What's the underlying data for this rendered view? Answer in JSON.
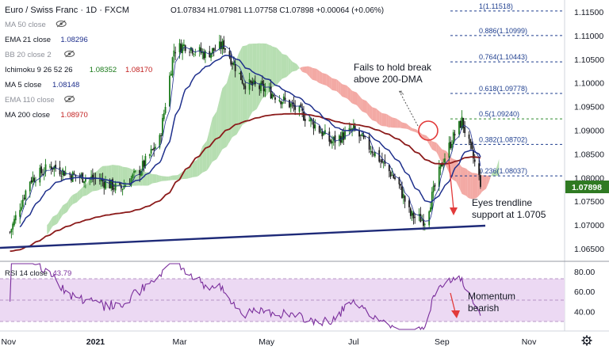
{
  "header": {
    "symbol": "Euro / Swiss Franc · 1D · FXCM",
    "ohlc": "O1.07834 H1.07981 L1.07758 C1.07898 +0.00064 (+0.06%)"
  },
  "legend": [
    {
      "label": "MA 50 close",
      "values": [],
      "hidden": true,
      "colors": []
    },
    {
      "label": "EMA 21 close",
      "values": [
        "1.08296"
      ],
      "hidden": false,
      "colors": [
        "#1e2f8c"
      ]
    },
    {
      "label": "BB 20 close 2",
      "values": [],
      "hidden": true,
      "colors": []
    },
    {
      "label": "Ichimoku 9 26 52 26",
      "values": [
        "1.08352",
        "1.08170"
      ],
      "hidden": false,
      "colors": [
        "#1a7a1a",
        "#c21f1f"
      ]
    },
    {
      "label": "MA 5 close",
      "values": [
        "1.08148"
      ],
      "hidden": false,
      "colors": [
        "#1e2f8c"
      ]
    },
    {
      "label": "EMA 110 close",
      "values": [],
      "hidden": true,
      "colors": []
    },
    {
      "label": "MA 200 close",
      "values": [
        "1.08970"
      ],
      "hidden": false,
      "colors": [
        "#c21f1f"
      ]
    }
  ],
  "fib_levels": [
    {
      "label": "1(1.11518)",
      "value": 1.11518,
      "color": "#1f3f8f"
    },
    {
      "label": "0.886(1.10999)",
      "value": 1.10999,
      "color": "#1f3f8f"
    },
    {
      "label": "0.764(1.10443)",
      "value": 1.10443,
      "color": "#1f3f8f"
    },
    {
      "label": "0.618(1.09778)",
      "value": 1.09778,
      "color": "#1f3f8f"
    },
    {
      "label": "0.5(1.09240)",
      "value": 1.0924,
      "color": "#2e8b2e"
    },
    {
      "label": "0.382(1.08702)",
      "value": 1.08702,
      "color": "#1f3f8f"
    },
    {
      "label": "0.236(1.08037)",
      "value": 1.08037,
      "color": "#1f3f8f"
    }
  ],
  "annotations": {
    "dma_fail": "Fails to hold break\nabove 200-DMA",
    "trendline": "Eyes trendline\nsupport at 1.0705",
    "momentum": "Momentum\nbearish"
  },
  "last_price": {
    "label": "1.07898",
    "value": 1.07898,
    "color": "#2f7a22"
  },
  "rsi_legend": {
    "label": "RSI 14 close",
    "value": "43.79"
  },
  "price_axis_ticks": [
    "1.11500",
    "1.11000",
    "1.10500",
    "1.10000",
    "1.09500",
    "1.09000",
    "1.08500",
    "1.08000",
    "1.07500",
    "1.07000",
    "1.06500"
  ],
  "rsi_axis_ticks": [
    "80.00",
    "60.00",
    "40.00"
  ],
  "time_axis_ticks": [
    "Nov",
    "2021",
    "Mar",
    "May",
    "Jul",
    "Sep",
    "Nov"
  ],
  "icons": {
    "settings": "gear-icon",
    "eye": "eye-crossed-icon"
  },
  "colors": {
    "up_candle": "#1a7a1a",
    "down_candle": "#1a1a1a",
    "ema21": "#1e2f8c",
    "ma200": "#8b1a1a",
    "trendline": "#1e2a78",
    "cloud_green": "#a9d8a3",
    "cloud_red": "#f19a94",
    "rsi_line": "#7a2e9c",
    "rsi_band": "#ecd9f3"
  },
  "chart_data": [
    {
      "type": "candlestick",
      "title": "Euro / Swiss Franc · 1D · FXCM",
      "xlabel": "",
      "ylabel": "",
      "x_ticks": [
        "Nov",
        "2021",
        "Mar",
        "May",
        "Jul",
        "Sep",
        "Nov"
      ],
      "ylim": [
        1.0625,
        1.1175
      ],
      "log_scale": false,
      "grid": false,
      "close_path_approx": {
        "dates": [
          "2020-11-02",
          "2020-11-16",
          "2020-12-01",
          "2020-12-15",
          "2021-01-04",
          "2021-01-18",
          "2021-02-01",
          "2021-02-15",
          "2021-02-25",
          "2021-03-05",
          "2021-03-19",
          "2021-04-01",
          "2021-04-15",
          "2021-05-01",
          "2021-05-17",
          "2021-06-01",
          "2021-06-15",
          "2021-07-01",
          "2021-07-15",
          "2021-08-01",
          "2021-08-10",
          "2021-08-20",
          "2021-09-01",
          "2021-09-08",
          "2021-09-15",
          "2021-09-22",
          "2021-09-28"
        ],
        "values": [
          1.0685,
          1.0795,
          1.0825,
          1.0805,
          1.0795,
          1.0775,
          1.0815,
          1.088,
          1.107,
          1.108,
          1.106,
          1.108,
          1.1,
          1.0985,
          1.0955,
          1.092,
          1.0875,
          1.09,
          1.0855,
          1.079,
          1.072,
          1.071,
          1.083,
          1.088,
          1.092,
          1.085,
          1.079
        ]
      },
      "fibonacci": [
        1.11518,
        1.10999,
        1.10443,
        1.09778,
        1.0924,
        1.08702,
        1.08037
      ],
      "trendline_support": 1.0705,
      "last_close": 1.07898
    },
    {
      "type": "line",
      "title": "RSI 14 close",
      "ylim": [
        22,
        88
      ],
      "y_ticks": [
        80,
        60,
        40
      ],
      "series": [
        {
          "name": "RSI 14 close",
          "last": 43.79
        }
      ]
    }
  ]
}
